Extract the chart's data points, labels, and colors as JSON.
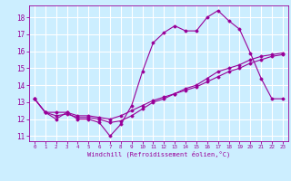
{
  "xlabel": "Windchill (Refroidissement éolien,°C)",
  "bg_color": "#cceeff",
  "grid_color": "#ffffff",
  "line_color": "#990099",
  "xlim": [
    -0.5,
    23.5
  ],
  "ylim": [
    10.7,
    18.7
  ],
  "yticks": [
    11,
    12,
    13,
    14,
    15,
    16,
    17,
    18
  ],
  "xticks": [
    0,
    1,
    2,
    3,
    4,
    5,
    6,
    7,
    8,
    9,
    10,
    11,
    12,
    13,
    14,
    15,
    16,
    17,
    18,
    19,
    20,
    21,
    22,
    23
  ],
  "series": [
    {
      "x": [
        0,
        1,
        2,
        3,
        4,
        5,
        6,
        7,
        8,
        9,
        10,
        11,
        12,
        13,
        14,
        15,
        16,
        17,
        18,
        19,
        20,
        21,
        22,
        23
      ],
      "y": [
        13.2,
        12.4,
        12.0,
        12.4,
        12.0,
        12.0,
        11.8,
        11.0,
        11.7,
        12.8,
        14.8,
        16.5,
        17.1,
        17.5,
        17.2,
        17.2,
        18.0,
        18.4,
        17.8,
        17.3,
        15.9,
        14.4,
        13.2,
        13.2
      ]
    },
    {
      "x": [
        0,
        1,
        2,
        3,
        4,
        5,
        6,
        7,
        8,
        9,
        10,
        11,
        12,
        13,
        14,
        15,
        16,
        17,
        18,
        19,
        20,
        21,
        22,
        23
      ],
      "y": [
        13.2,
        12.4,
        12.4,
        12.4,
        12.2,
        12.2,
        12.1,
        12.0,
        12.2,
        12.5,
        12.8,
        13.1,
        13.3,
        13.5,
        13.7,
        13.9,
        14.2,
        14.5,
        14.8,
        15.0,
        15.3,
        15.5,
        15.7,
        15.8
      ]
    },
    {
      "x": [
        0,
        1,
        2,
        3,
        4,
        5,
        6,
        7,
        8,
        9,
        10,
        11,
        12,
        13,
        14,
        15,
        16,
        17,
        18,
        19,
        20,
        21,
        22,
        23
      ],
      "y": [
        13.2,
        12.4,
        12.2,
        12.3,
        12.1,
        12.1,
        12.0,
        11.8,
        11.9,
        12.2,
        12.6,
        13.0,
        13.2,
        13.5,
        13.8,
        14.0,
        14.4,
        14.8,
        15.0,
        15.2,
        15.5,
        15.7,
        15.8,
        15.9
      ]
    }
  ]
}
